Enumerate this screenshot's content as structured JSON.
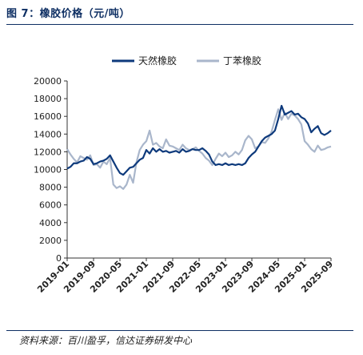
{
  "figure": {
    "title": "图 7：橡胶价格（元/吨）",
    "source": "资料来源：百川盈孚，信达证券研发中心"
  },
  "chart_data": {
    "type": "line",
    "title": "",
    "xlabel": "",
    "ylabel": "",
    "ylim": [
      0,
      20000
    ],
    "yticks": [
      0,
      2000,
      4000,
      6000,
      8000,
      10000,
      12000,
      14000,
      16000,
      18000,
      20000
    ],
    "xticks": [
      "2019-01",
      "2019-09",
      "2020-05",
      "2021-01",
      "2021-09",
      "2022-05",
      "2023-01",
      "2023-09",
      "2024-05",
      "2025-01",
      "2025-09"
    ],
    "x_range": [
      0,
      80
    ],
    "legend_position": "top-center",
    "grid": false,
    "series": [
      {
        "name": "天然橡胶",
        "color": "#0e3a7c",
        "points": [
          [
            0,
            10100
          ],
          [
            1,
            10300
          ],
          [
            2,
            10700
          ],
          [
            3,
            10700
          ],
          [
            4,
            10900
          ],
          [
            5,
            11000
          ],
          [
            6,
            11400
          ],
          [
            7,
            11200
          ],
          [
            8,
            10600
          ],
          [
            9,
            10700
          ],
          [
            10,
            10900
          ],
          [
            11,
            11000
          ],
          [
            12,
            11200
          ],
          [
            13,
            11600
          ],
          [
            14,
            10900
          ],
          [
            15,
            10200
          ],
          [
            16,
            9600
          ],
          [
            17,
            9400
          ],
          [
            18,
            9800
          ],
          [
            19,
            10200
          ],
          [
            20,
            10300
          ],
          [
            21,
            10700
          ],
          [
            22,
            11100
          ],
          [
            23,
            11300
          ],
          [
            24,
            12200
          ],
          [
            25,
            11800
          ],
          [
            26,
            12400
          ],
          [
            27,
            12000
          ],
          [
            28,
            12300
          ],
          [
            29,
            12000
          ],
          [
            30,
            12100
          ],
          [
            31,
            11900
          ],
          [
            32,
            12000
          ],
          [
            33,
            12100
          ],
          [
            34,
            11900
          ],
          [
            35,
            12300
          ],
          [
            36,
            12000
          ],
          [
            37,
            12100
          ],
          [
            38,
            12300
          ],
          [
            39,
            12200
          ],
          [
            40,
            12200
          ],
          [
            41,
            12400
          ],
          [
            42,
            12100
          ],
          [
            43,
            11700
          ],
          [
            44,
            10900
          ],
          [
            45,
            10500
          ],
          [
            46,
            10600
          ],
          [
            47,
            10500
          ],
          [
            48,
            10700
          ],
          [
            49,
            10500
          ],
          [
            50,
            10600
          ],
          [
            51,
            10500
          ],
          [
            52,
            10600
          ],
          [
            53,
            10500
          ],
          [
            54,
            10700
          ],
          [
            55,
            11300
          ],
          [
            56,
            11700
          ],
          [
            57,
            12000
          ],
          [
            58,
            12600
          ],
          [
            59,
            13200
          ],
          [
            60,
            13600
          ],
          [
            61,
            13800
          ],
          [
            62,
            14000
          ],
          [
            63,
            14400
          ],
          [
            64,
            15700
          ],
          [
            65,
            17200
          ],
          [
            66,
            16200
          ],
          [
            67,
            16400
          ],
          [
            68,
            16600
          ],
          [
            69,
            16200
          ],
          [
            70,
            16300
          ],
          [
            71,
            15900
          ],
          [
            72,
            15700
          ],
          [
            73,
            15200
          ],
          [
            74,
            14200
          ],
          [
            75,
            14600
          ],
          [
            76,
            14900
          ],
          [
            77,
            14100
          ],
          [
            78,
            13900
          ],
          [
            79,
            14100
          ],
          [
            80,
            14400
          ]
        ]
      },
      {
        "name": "丁苯橡胶",
        "color": "#a9b6cb",
        "points": [
          [
            0,
            12300
          ],
          [
            1,
            11700
          ],
          [
            2,
            11200
          ],
          [
            3,
            10800
          ],
          [
            4,
            11500
          ],
          [
            5,
            11300
          ],
          [
            6,
            11100
          ],
          [
            7,
            11600
          ],
          [
            8,
            10500
          ],
          [
            9,
            10600
          ],
          [
            10,
            10200
          ],
          [
            11,
            10900
          ],
          [
            12,
            10600
          ],
          [
            13,
            11300
          ],
          [
            14,
            8300
          ],
          [
            15,
            7900
          ],
          [
            16,
            8100
          ],
          [
            17,
            7800
          ],
          [
            18,
            8300
          ],
          [
            19,
            9400
          ],
          [
            20,
            8500
          ],
          [
            21,
            10800
          ],
          [
            22,
            12200
          ],
          [
            23,
            12800
          ],
          [
            24,
            13200
          ],
          [
            25,
            14400
          ],
          [
            26,
            12800
          ],
          [
            27,
            13000
          ],
          [
            28,
            12600
          ],
          [
            29,
            12400
          ],
          [
            30,
            13400
          ],
          [
            31,
            12700
          ],
          [
            32,
            12600
          ],
          [
            33,
            12400
          ],
          [
            34,
            12200
          ],
          [
            35,
            12800
          ],
          [
            36,
            12400
          ],
          [
            37,
            12200
          ],
          [
            38,
            12300
          ],
          [
            39,
            12500
          ],
          [
            40,
            12100
          ],
          [
            41,
            11800
          ],
          [
            42,
            11300
          ],
          [
            43,
            11000
          ],
          [
            44,
            10500
          ],
          [
            45,
            11200
          ],
          [
            46,
            11800
          ],
          [
            47,
            11500
          ],
          [
            48,
            11900
          ],
          [
            49,
            11400
          ],
          [
            50,
            11600
          ],
          [
            51,
            12000
          ],
          [
            52,
            11700
          ],
          [
            53,
            12200
          ],
          [
            54,
            13300
          ],
          [
            55,
            13800
          ],
          [
            56,
            13400
          ],
          [
            57,
            12400
          ],
          [
            58,
            12600
          ],
          [
            59,
            13100
          ],
          [
            60,
            13000
          ],
          [
            61,
            13500
          ],
          [
            62,
            14300
          ],
          [
            63,
            15600
          ],
          [
            64,
            16800
          ],
          [
            65,
            15600
          ],
          [
            66,
            16400
          ],
          [
            67,
            15700
          ],
          [
            68,
            16300
          ],
          [
            69,
            16100
          ],
          [
            70,
            15700
          ],
          [
            71,
            15100
          ],
          [
            72,
            13200
          ],
          [
            73,
            12800
          ],
          [
            74,
            12300
          ],
          [
            75,
            12000
          ],
          [
            76,
            12700
          ],
          [
            77,
            12200
          ],
          [
            78,
            12300
          ],
          [
            79,
            12500
          ],
          [
            80,
            12600
          ]
        ]
      }
    ]
  }
}
